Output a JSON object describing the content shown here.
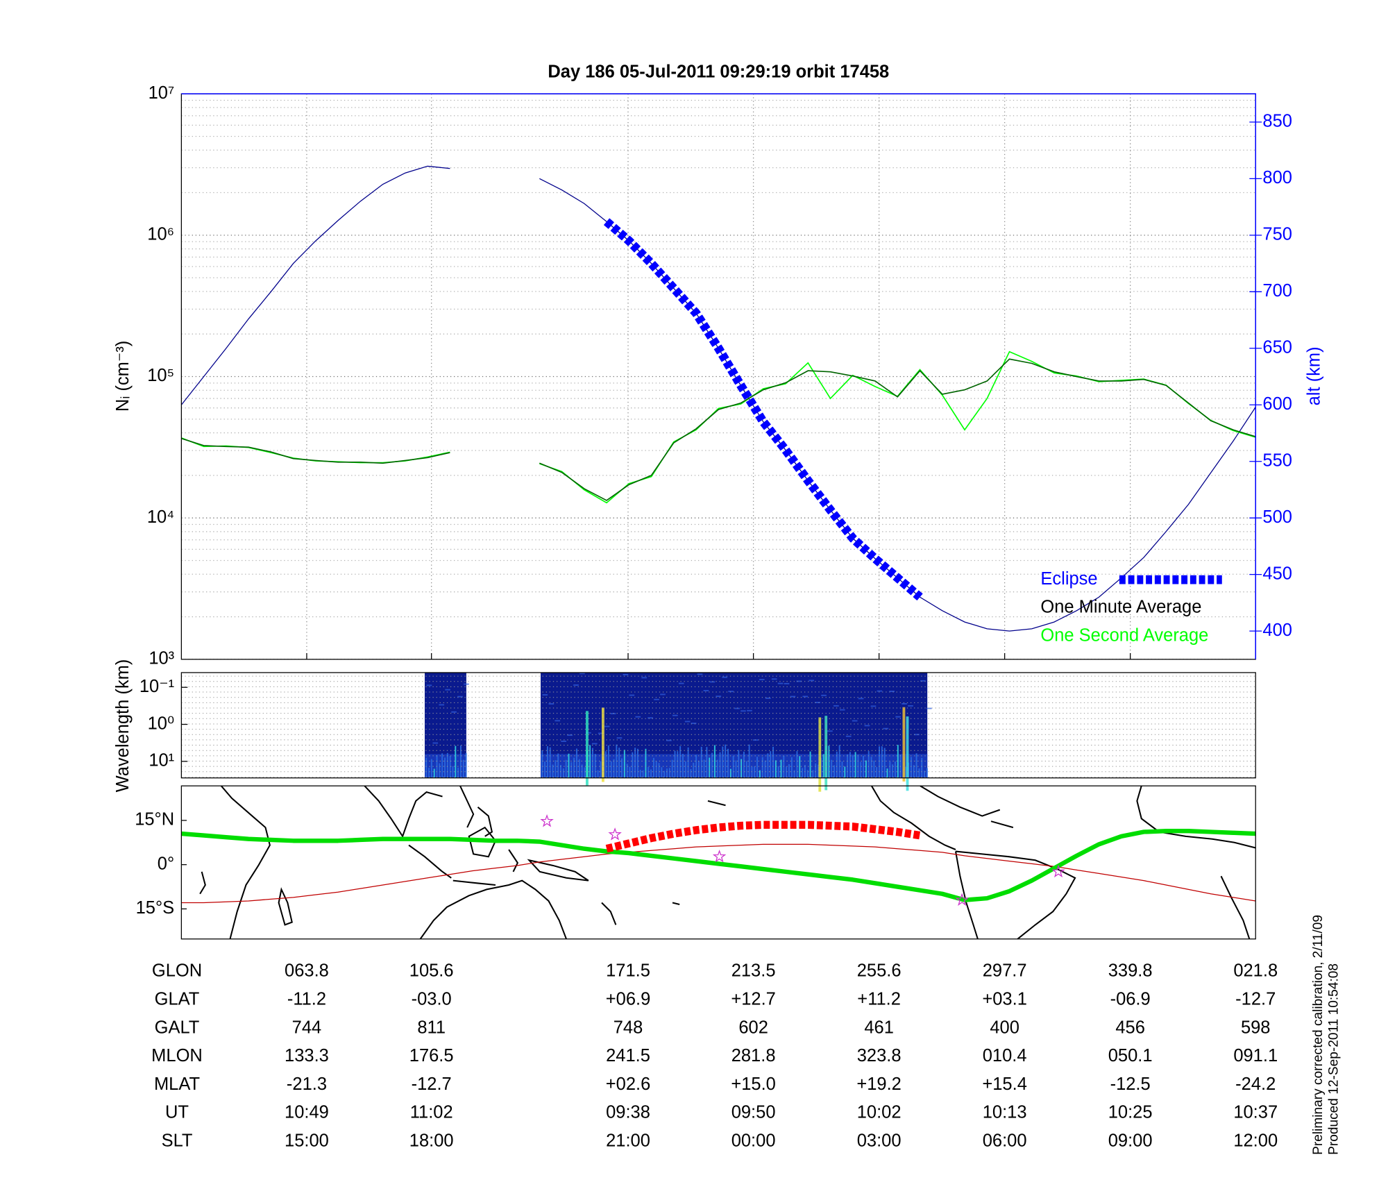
{
  "chart_data": [
    {
      "type": "line",
      "title": "Day 186  05-Jul-2011 09:29:19   orbit 17458",
      "ylabel": "Nᵢ (cm⁻³)",
      "y2label": "alt (km)",
      "yscale": "log",
      "grid": true,
      "legend": "lower right",
      "x": [
        21.8,
        29.3,
        36.8,
        44.3,
        51.8,
        59.3,
        66.8,
        74.3,
        81.8,
        89.3,
        96.8,
        104.3,
        111.8,
        119.3,
        126.8,
        134.3,
        141.8,
        149.3,
        156.8,
        164.3,
        171.8,
        179.3,
        186.8,
        194.3,
        201.8,
        209.3,
        216.8,
        224.3,
        231.8,
        239.3,
        246.8,
        254.3,
        261.8,
        269.3,
        276.8,
        284.3,
        291.8,
        299.3,
        306.8,
        314.3,
        321.8,
        329.3,
        336.8,
        344.3,
        351.8,
        359.3,
        366.8,
        374.3,
        381.8
      ],
      "xlim": [
        21.8,
        381.8
      ],
      "xticks": [
        63.8,
        105.6,
        171.5,
        213.5,
        255.6,
        297.7,
        339.8,
        381.8
      ],
      "ylim": [
        1000,
        10000000
      ],
      "yticks": [
        {
          "value": 1000,
          "label": "10³"
        },
        {
          "value": 10000,
          "label": "10⁴"
        },
        {
          "value": 100000,
          "label": "10⁵"
        },
        {
          "value": 1000000,
          "label": "10⁶"
        },
        {
          "value": 10000000,
          "label": "10⁷"
        }
      ],
      "yminorticks": [
        2000,
        3000,
        4000,
        5000,
        6000,
        7000,
        8000,
        9000,
        20000,
        30000,
        40000,
        50000,
        60000,
        70000,
        80000,
        90000,
        200000,
        300000,
        400000,
        500000,
        600000,
        700000,
        800000,
        900000,
        2000000,
        3000000,
        4000000,
        5000000,
        6000000,
        7000000,
        8000000,
        9000000
      ],
      "y2lim": [
        375,
        875
      ],
      "y2ticks": [
        400,
        450,
        500,
        550,
        600,
        650,
        700,
        750,
        800,
        850
      ],
      "series": [
        {
          "color": "#00008b",
          "axis": "y2",
          "values": [
            600,
            625,
            650,
            676,
            700,
            725,
            745,
            763,
            780,
            795,
            805,
            811,
            809,
            null,
            null,
            null,
            800,
            790,
            778,
            762,
            745,
            725,
            703,
            681,
            650,
            617,
            585,
            560,
            533,
            507,
            482,
            464,
            447,
            430,
            418,
            408,
            402,
            400,
            402,
            408,
            418,
            430,
            447,
            465,
            488,
            512,
            540,
            568,
            598
          ]
        },
        {
          "name": "One Second Average",
          "color": "#00ff00",
          "values": [
            36800,
            32000,
            32300,
            31500,
            29000,
            26500,
            25300,
            25000,
            24600,
            24600,
            25300,
            27000,
            29200,
            null,
            null,
            null,
            24200,
            21300,
            15800,
            12800,
            17500,
            19600,
            34500,
            42000,
            59500,
            64000,
            82000,
            89000,
            125000,
            70000,
            102000,
            85000,
            72500,
            112000,
            74000,
            42000,
            70000,
            150000,
            128000,
            106000,
            101000,
            92000,
            94000,
            96000,
            87000,
            64500,
            49000,
            41500,
            37200
          ]
        },
        {
          "name": "One Minute Average",
          "color": "#006400",
          "label_color": "#000000",
          "values": [
            36500,
            32500,
            32000,
            31700,
            29300,
            26300,
            25500,
            24800,
            24800,
            24400,
            25500,
            26700,
            29000,
            null,
            null,
            null,
            24400,
            21000,
            16100,
            13300,
            17200,
            20000,
            34000,
            42700,
            58500,
            65000,
            80600,
            90400,
            110000,
            108000,
            101000,
            93000,
            71800,
            110000,
            75000,
            80600,
            93000,
            133000,
            124000,
            108000,
            100000,
            93000,
            93000,
            95500,
            86600,
            65000,
            48700,
            42000,
            37600
          ]
        },
        {
          "name": "Eclipse",
          "color": "#0000ff",
          "axis": "y2",
          "style": "squares",
          "values": [
            null,
            null,
            null,
            null,
            null,
            null,
            null,
            null,
            null,
            null,
            null,
            null,
            null,
            null,
            null,
            null,
            null,
            null,
            null,
            762,
            745,
            725,
            703,
            681,
            650,
            617,
            585,
            560,
            533,
            507,
            482,
            464,
            447,
            430,
            null,
            null,
            null,
            null,
            null,
            null,
            null,
            null,
            null,
            null,
            null,
            null,
            null,
            null,
            null
          ]
        }
      ]
    },
    {
      "type": "spectrogram",
      "ylabel": "Wavelength (km)",
      "yscale": "log",
      "ylim": [
        28,
        0.04
      ],
      "yticks": [
        {
          "value": 0.1,
          "label": "10⁻¹"
        },
        {
          "value": 1,
          "label": "10⁰"
        },
        {
          "value": 10,
          "label": "10¹"
        }
      ]
    },
    {
      "type": "map",
      "x": [
        21.8,
        29.3,
        36.8,
        44.3,
        51.8,
        59.3,
        66.8,
        74.3,
        81.8,
        89.3,
        96.8,
        104.3,
        111.8,
        119.3,
        126.8,
        134.3,
        141.8,
        149.3,
        156.8,
        164.3,
        171.8,
        179.3,
        186.8,
        194.3,
        201.8,
        209.3,
        216.8,
        224.3,
        231.8,
        239.3,
        246.8,
        254.3,
        261.8,
        269.3,
        276.8,
        284.3,
        291.8,
        299.3,
        306.8,
        314.3,
        321.8,
        329.3,
        336.8,
        344.3,
        351.8,
        359.3,
        366.8,
        374.3,
        381.8
      ],
      "xlim": [
        21.8,
        381.8
      ],
      "ylim": [
        -25.2,
        26.7
      ],
      "yticks": [
        {
          "value": 15,
          "label": "15°N"
        },
        {
          "value": 0,
          "label": "0°"
        },
        {
          "value": -15,
          "label": "15°S"
        }
      ],
      "series": [
        {
          "color": "#c00000",
          "width": 1,
          "values": [
            -12.9,
            -12.9,
            -12.6,
            -12.3,
            -11.7,
            -11.1,
            -10.2,
            -9.3,
            -8.1,
            -6.9,
            -5.7,
            -4.5,
            -3.3,
            -2.1,
            -1.2,
            -0.3,
            0.9,
            1.8,
            2.7,
            3.6,
            4.2,
            4.8,
            5.4,
            6.0,
            6.3,
            6.6,
            6.9,
            6.9,
            6.9,
            6.6,
            6.3,
            6.0,
            5.4,
            4.8,
            4.2,
            3.0,
            2.1,
            1.2,
            0.3,
            -0.6,
            -1.8,
            -3.0,
            -4.2,
            -5.4,
            -6.9,
            -8.4,
            -9.9,
            -11.1,
            -12.3
          ]
        },
        {
          "color": "#00dd00",
          "width": 5,
          "values": [
            10.5,
            9.9,
            9.3,
            8.7,
            8.4,
            8.1,
            8.1,
            8.1,
            8.4,
            8.7,
            8.7,
            8.7,
            8.7,
            8.4,
            8.1,
            8.1,
            7.8,
            6.6,
            5.4,
            4.5,
            3.9,
            3.0,
            2.1,
            1.2,
            0.3,
            -0.6,
            -1.5,
            -2.4,
            -3.3,
            -4.2,
            -5.1,
            -6.3,
            -7.5,
            -8.7,
            -9.9,
            -12.0,
            -11.4,
            -9.0,
            -5.4,
            -1.2,
            3.0,
            6.9,
            9.6,
            11.1,
            11.4,
            11.4,
            11.1,
            10.8,
            10.5
          ]
        },
        {
          "color": "#ff0000",
          "style": "squares",
          "values": [
            null,
            null,
            null,
            null,
            null,
            null,
            null,
            null,
            null,
            null,
            null,
            null,
            null,
            null,
            null,
            null,
            null,
            null,
            null,
            5.4,
            7.2,
            9.0,
            10.5,
            11.7,
            12.6,
            13.2,
            13.5,
            13.5,
            13.5,
            13.2,
            12.9,
            12.0,
            11.1,
            9.9,
            null,
            null,
            null,
            null,
            null,
            null,
            null,
            null,
            null,
            null,
            null,
            null,
            null,
            null,
            null
          ]
        }
      ],
      "points": {
        "color": "#cc33cc",
        "x": [
          144.3,
          167.1,
          202.1,
          283.4,
          315.7
        ],
        "values": [
          14.7,
          10.2,
          2.7,
          -12.0,
          -2.4
        ]
      }
    }
  ],
  "table": {
    "rows": [
      [
        "GLON",
        "063.8",
        "105.6",
        "171.5",
        "213.5",
        "255.6",
        "297.7",
        "339.8",
        "021.8"
      ],
      [
        "GLAT",
        "-11.2",
        "-03.0",
        "+06.9",
        "+12.7",
        "+11.2",
        "+03.1",
        "-06.9",
        "-12.7"
      ],
      [
        "GALT",
        "744",
        "811",
        "748",
        "602",
        "461",
        "400",
        "456",
        "598"
      ],
      [
        "MLON",
        "133.3",
        "176.5",
        "241.5",
        "281.8",
        "323.8",
        "010.4",
        "050.1",
        "091.1"
      ],
      [
        "MLAT",
        "-21.3",
        "-12.7",
        "+02.6",
        "+15.0",
        "+19.2",
        "+15.4",
        "-12.5",
        "-24.2"
      ],
      [
        "UT",
        "10:49",
        "11:02",
        "09:38",
        "09:50",
        "10:02",
        "10:13",
        "10:25",
        "10:37"
      ],
      [
        "SLT",
        "15:00",
        "18:00",
        "21:00",
        "00:00",
        "03:00",
        "06:00",
        "09:00",
        "12:00"
      ]
    ]
  },
  "footer": [
    "Preliminary corrected calibration, 2/11/09",
    "Produced 12-Sep-2011 10:54:08"
  ]
}
